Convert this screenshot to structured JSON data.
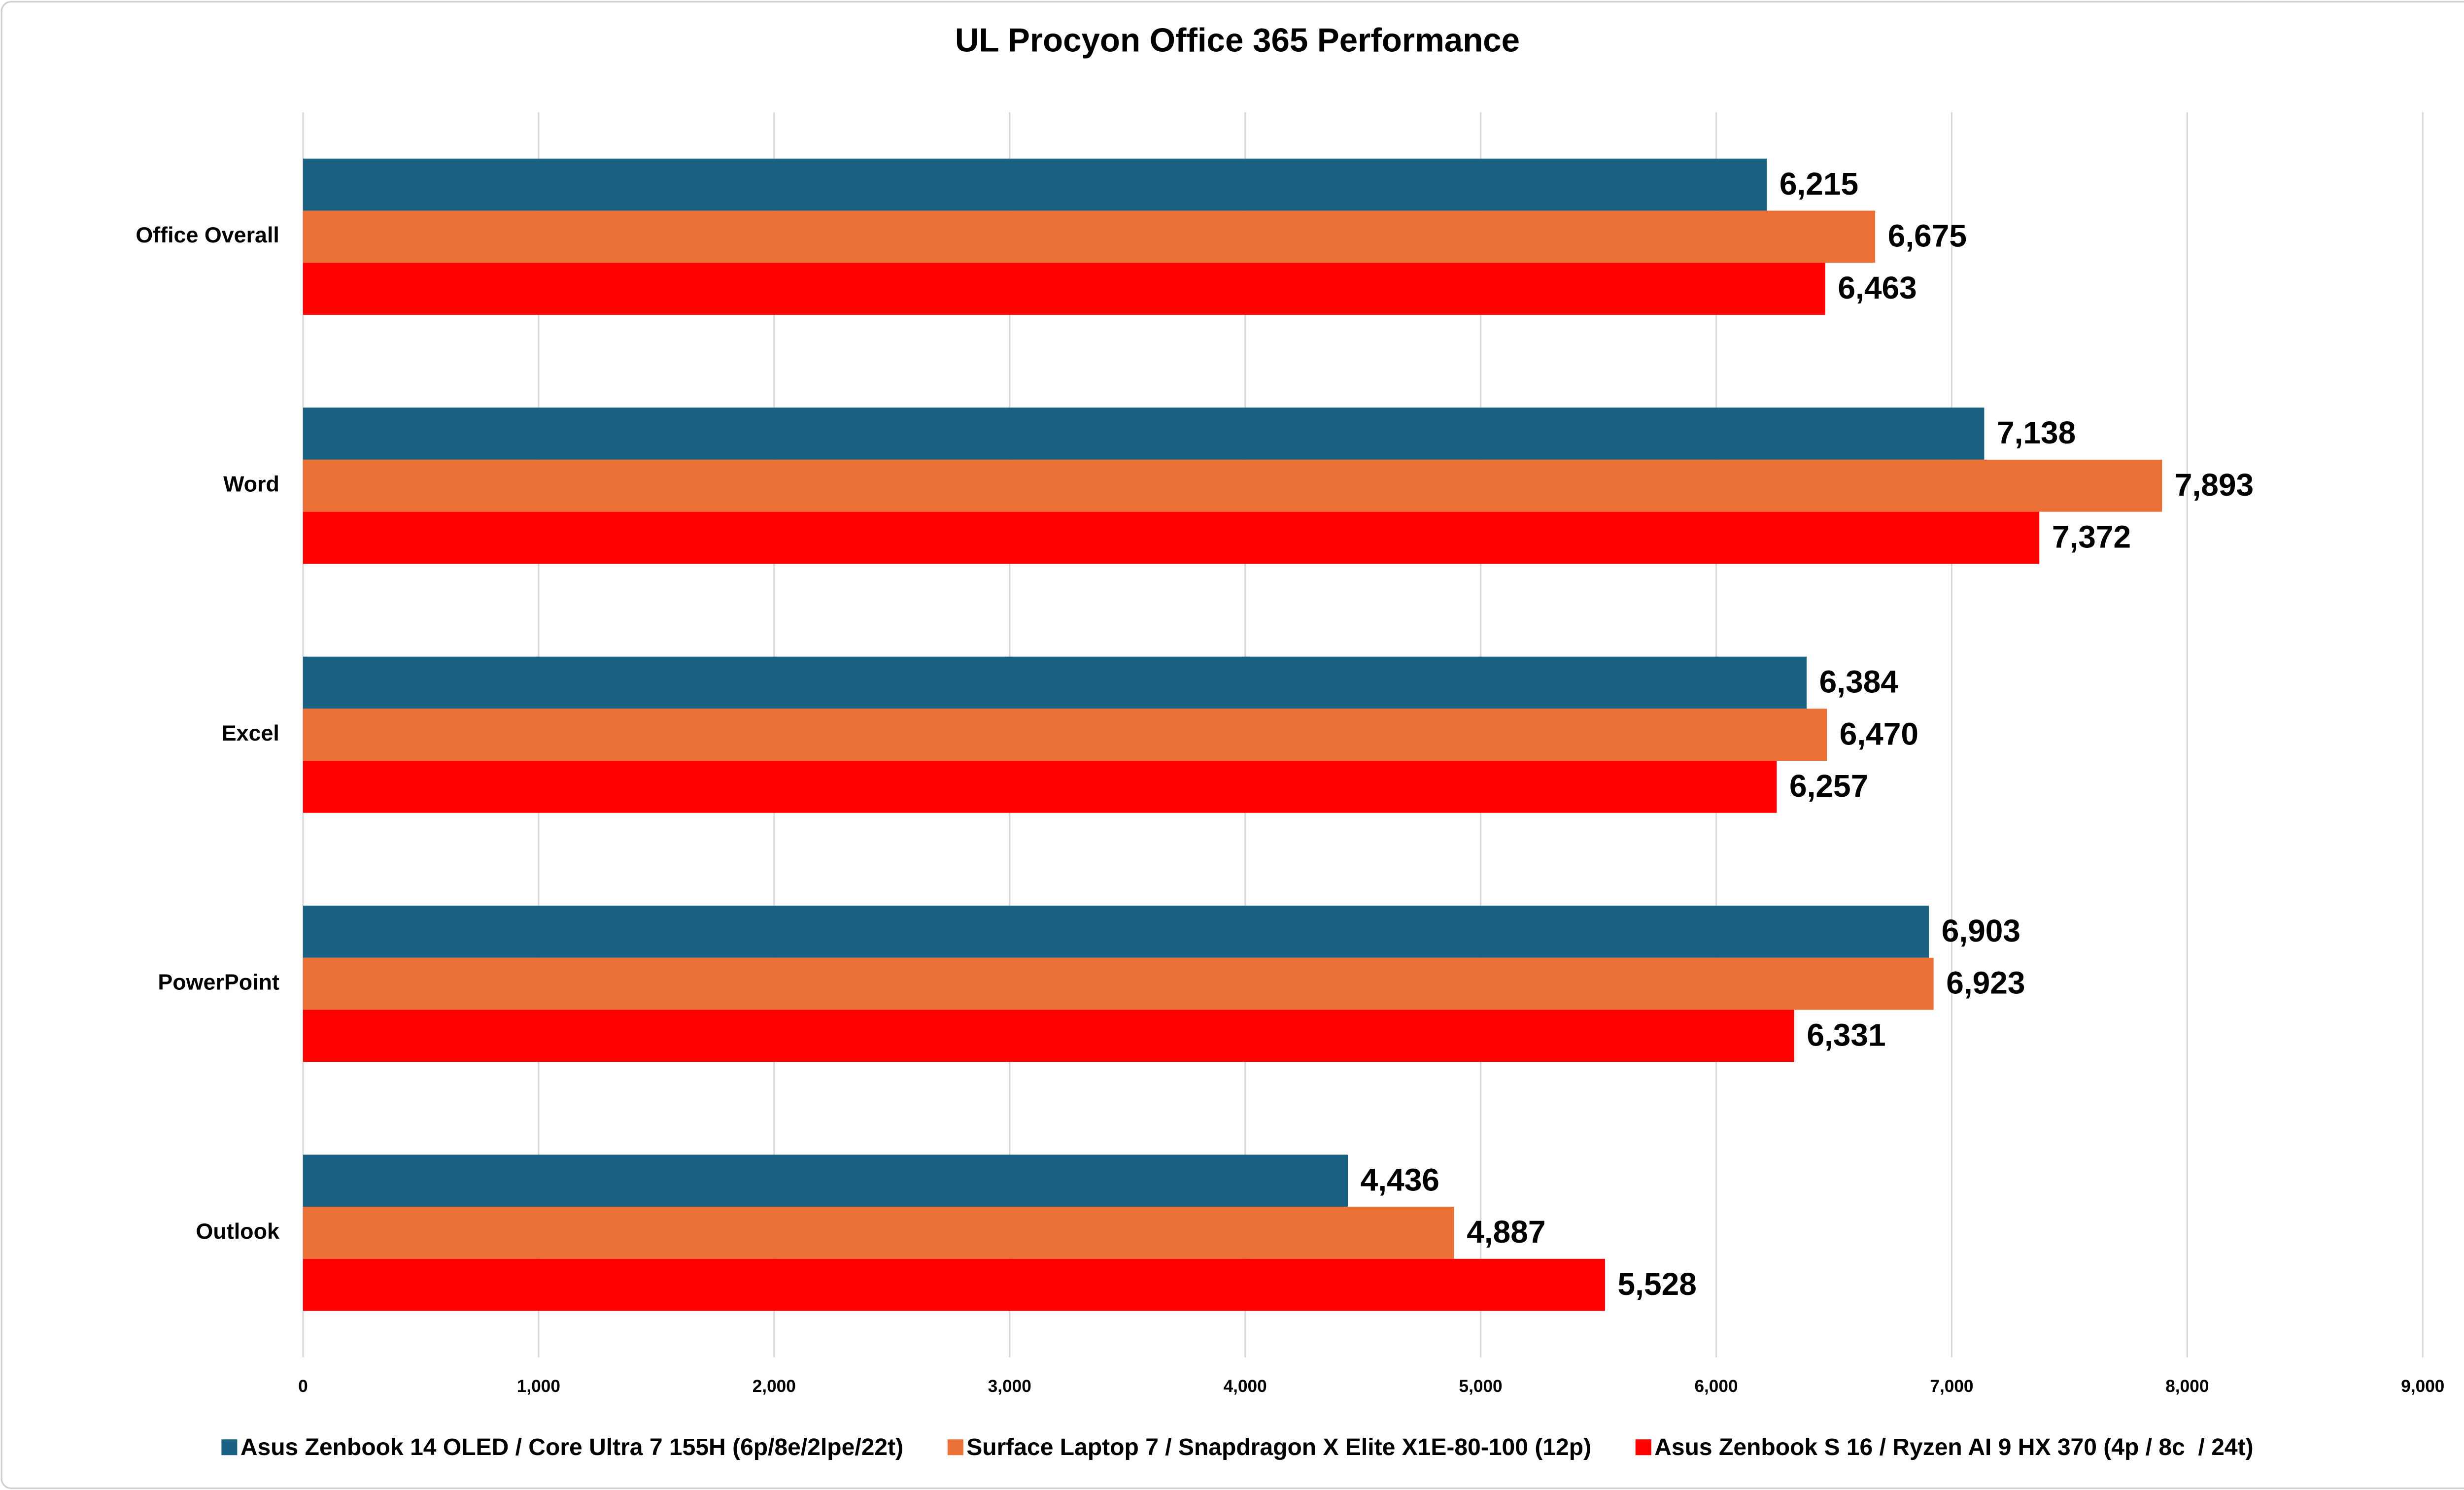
{
  "chart_data": {
    "type": "hbar",
    "title": "UL Procyon Office 365 Performance",
    "categories": [
      "Office Overall",
      "Word",
      "Excel",
      "PowerPoint",
      "Outlook"
    ],
    "series": [
      {
        "name": "Asus Zenbook 14 OLED / Core Ultra 7 155H (6p/8e/2lpe/22t)",
        "color": "#1b6184",
        "values": [
          6215,
          7138,
          6384,
          6903,
          4436
        ],
        "value_labels": [
          "6,215",
          "7,138",
          "6,384",
          "6,903",
          "4,436"
        ]
      },
      {
        "name": "Surface Laptop 7 / Snapdragon X Elite X1E-80-100 (12p)",
        "color": "#ea7035",
        "values": [
          6675,
          7893,
          6470,
          6923,
          4887
        ],
        "value_labels": [
          "6,675",
          "7,893",
          "6,470",
          "6,923",
          "4,887"
        ]
      },
      {
        "name": "Asus Zenbook S 16 / Ryzen AI 9 HX 370 (4p / 8c  / 24t)",
        "color": "#ff0000",
        "values": [
          6463,
          7372,
          6257,
          6331,
          5528
        ],
        "value_labels": [
          "6,463",
          "7,372",
          "6,257",
          "6,331",
          "5,528"
        ]
      }
    ],
    "xlim": [
      0,
      9000
    ],
    "xticks": [
      0,
      {
        "value": 1000,
        "label": "1,000"
      },
      {
        "value": 2000,
        "label": "2,000"
      },
      {
        "value": 3000,
        "label": "3,000"
      },
      {
        "value": 4000,
        "label": "4,000"
      },
      {
        "value": 5000,
        "label": "5,000"
      },
      {
        "value": 6000,
        "label": "6,000"
      },
      {
        "value": 7000,
        "label": "7,000"
      },
      {
        "value": 8000,
        "label": "8,000"
      },
      {
        "value": 9000,
        "label": "9,000"
      }
    ],
    "grid": true,
    "legend": "bottom"
  }
}
